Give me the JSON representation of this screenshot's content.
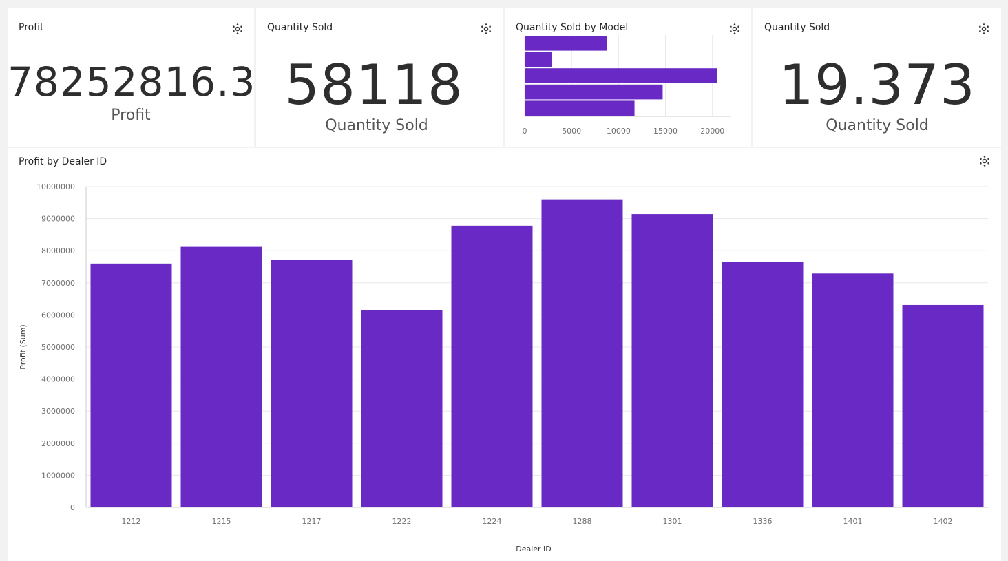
{
  "tiles": {
    "profit_kpi": {
      "title": "Profit",
      "value": "78252816.3",
      "label": "Profit"
    },
    "quantity_kpi": {
      "title": "Quantity Sold",
      "value": "58118",
      "label": "Quantity Sold"
    },
    "model_chart": {
      "title": "Quantity Sold by Model"
    },
    "quantity_avg_kpi": {
      "title": "Quantity Sold",
      "value": "19.373",
      "label": "Quantity Sold"
    },
    "dealer_chart": {
      "title": "Profit by Dealer ID"
    }
  },
  "icons": {
    "settings": "gear-icon"
  },
  "colors": {
    "bar": "#6929c4",
    "grid": "#e8e8e8",
    "background": "#f2f2f2"
  },
  "chart_data": [
    {
      "type": "bar",
      "orientation": "horizontal",
      "title": "Quantity Sold by Model",
      "categories": [
        "",
        "",
        "",
        "",
        ""
      ],
      "values": [
        8800,
        2900,
        20500,
        14700,
        11700
      ],
      "xlim": [
        0,
        22000
      ],
      "x_ticks": [
        "0",
        "5000",
        "10000",
        "15000",
        "20000"
      ],
      "xlabel": "",
      "ylabel": "",
      "grid": true
    },
    {
      "type": "bar",
      "title": "Profit by Dealer ID",
      "categories": [
        "1212",
        "1215",
        "1217",
        "1222",
        "1224",
        "1288",
        "1301",
        "1336",
        "1401",
        "1402"
      ],
      "values": [
        7600000,
        8120000,
        7720000,
        6150000,
        8780000,
        9600000,
        9140000,
        7640000,
        7290000,
        6310000
      ],
      "ylim": [
        0,
        10000000
      ],
      "y_ticks": [
        "0",
        "1000000",
        "2000000",
        "3000000",
        "4000000",
        "5000000",
        "6000000",
        "7000000",
        "8000000",
        "9000000",
        "10000000"
      ],
      "xlabel": "Dealer ID",
      "ylabel": "Profit (Sum)",
      "grid": true
    }
  ]
}
